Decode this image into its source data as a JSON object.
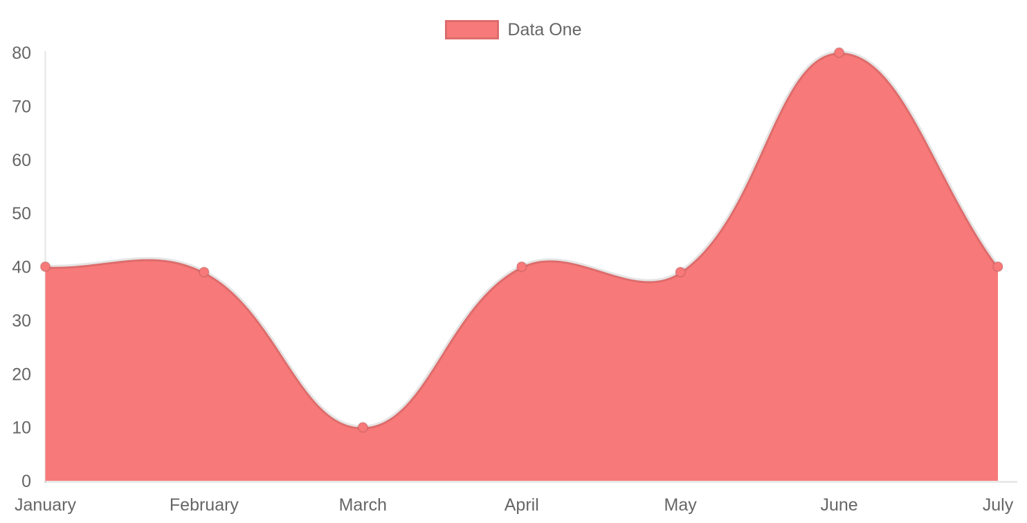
{
  "legend": {
    "label": "Data One"
  },
  "chart_data": {
    "type": "area",
    "title": "",
    "xlabel": "",
    "ylabel": "",
    "categories": [
      "January",
      "February",
      "March",
      "April",
      "May",
      "June",
      "July"
    ],
    "series": [
      {
        "name": "Data One",
        "values": [
          40,
          39,
          10,
          40,
          39,
          80,
          40
        ],
        "fill_color": "#f87979",
        "line_color": "rgba(0,0,0,0.1)",
        "point_color": "#f87979",
        "point_border_color": "rgba(0,0,0,0.1)"
      }
    ],
    "ylim": [
      0,
      80
    ],
    "yticks": [
      0,
      10,
      20,
      30,
      40,
      50,
      60,
      70,
      80
    ],
    "line_tension": 0.4,
    "legend_position": "top",
    "grid": "axis-lines-only",
    "axis_color": "rgba(0,0,0,0.1)",
    "tick_color": "#666666"
  }
}
